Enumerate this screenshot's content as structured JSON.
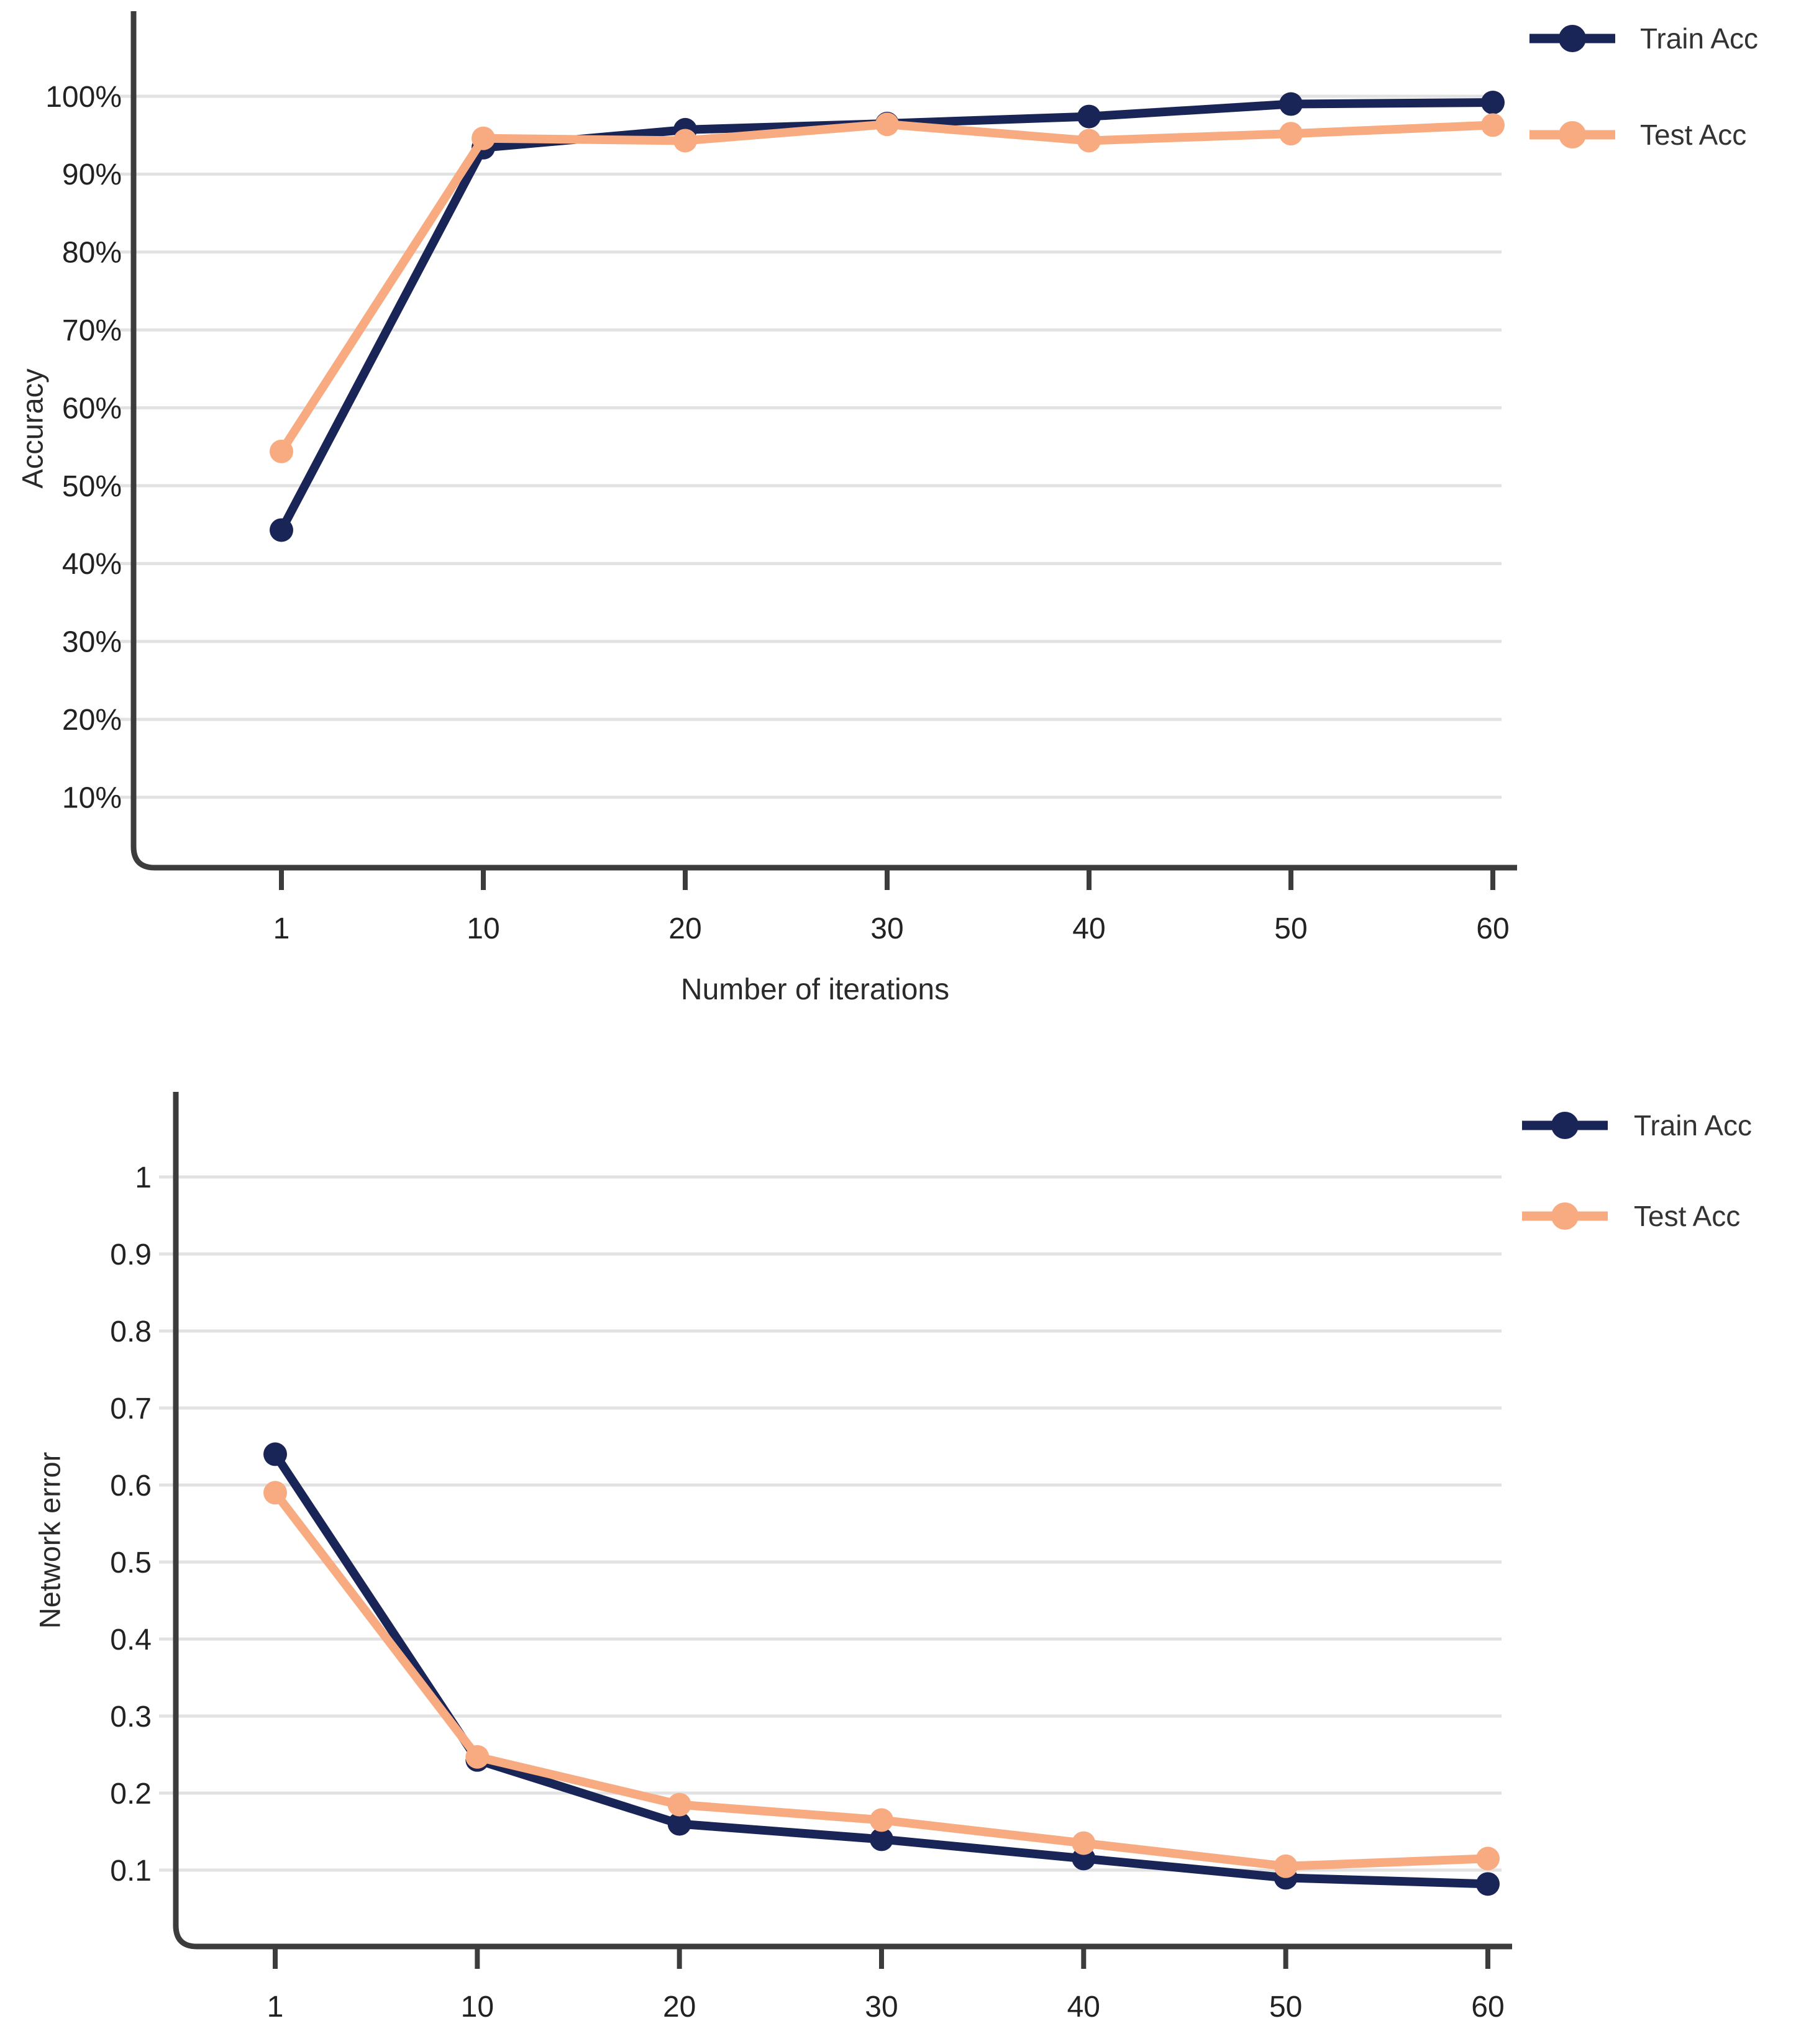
{
  "page": {
    "background": "#ffffff"
  },
  "colors": {
    "train": "#1a2557",
    "test": "#f8ab81",
    "grid": "#e2e2e2",
    "axis": "#3c3c3c",
    "tick_label": "#222222",
    "legend_text": "#333333",
    "axis_title": "#2a2a2a"
  },
  "chart_data": [
    {
      "id": "accuracy",
      "type": "line",
      "title": "",
      "xlabel": "Number of iterations",
      "ylabel": "Accuracy",
      "x": [
        1,
        10,
        20,
        30,
        40,
        50,
        60
      ],
      "xtick_labels": [
        "1",
        "10",
        "20",
        "30",
        "40",
        "50",
        "60"
      ],
      "ytick_values": [
        100,
        90,
        80,
        70,
        60,
        50,
        40,
        30,
        20,
        10
      ],
      "ytick_labels": [
        "100%",
        "90%",
        "80%",
        "70%",
        "60%",
        "50%",
        "40%",
        "30%",
        "20%",
        "10%"
      ],
      "ylim": [
        0,
        110
      ],
      "grid": true,
      "legend_position": "top-right",
      "series": [
        {
          "name": "Train Acc",
          "color_key": "train",
          "values": [
            44.3,
            93.4,
            95.7,
            96.5,
            97.4,
            99.0,
            99.2
          ]
        },
        {
          "name": "Test Acc",
          "color_key": "test",
          "values": [
            54.4,
            94.6,
            94.3,
            96.4,
            94.3,
            95.2,
            96.3
          ]
        }
      ]
    },
    {
      "id": "error",
      "type": "line",
      "title": "",
      "xlabel": "",
      "ylabel": "Network error",
      "x": [
        1,
        10,
        20,
        30,
        40,
        50,
        60
      ],
      "xtick_labels": [
        "1",
        "10",
        "20",
        "30",
        "40",
        "50",
        "60"
      ],
      "ytick_values": [
        1,
        0.9,
        0.8,
        0.7,
        0.6,
        0.5,
        0.4,
        0.3,
        0.2,
        0.1
      ],
      "ytick_labels": [
        "1",
        "0.9",
        "0.8",
        "0.7",
        "0.6",
        "0.5",
        "0.4",
        "0.3",
        "0.2",
        "0.1"
      ],
      "ylim": [
        0,
        1.11
      ],
      "grid": true,
      "legend_position": "top-right",
      "series": [
        {
          "name": "Train Acc",
          "color_key": "train",
          "values": [
            0.64,
            0.243,
            0.16,
            0.14,
            0.115,
            0.09,
            0.082
          ]
        },
        {
          "name": "Test Acc",
          "color_key": "test",
          "values": [
            0.59,
            0.247,
            0.185,
            0.165,
            0.135,
            0.105,
            0.115
          ]
        }
      ]
    }
  ]
}
